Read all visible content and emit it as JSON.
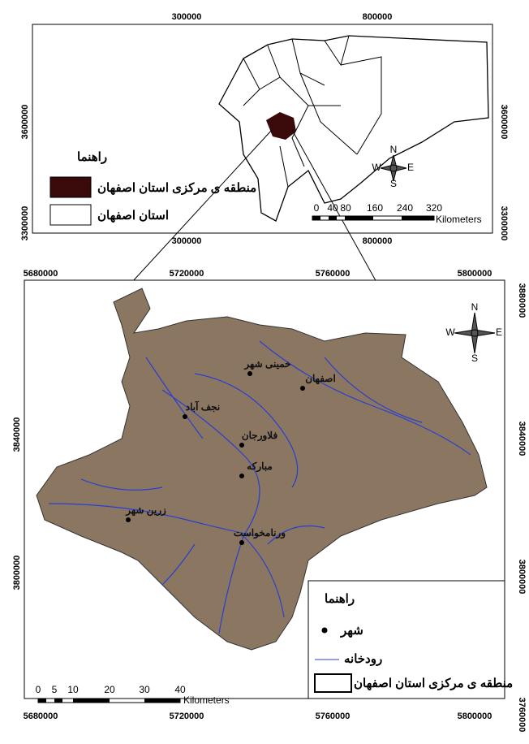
{
  "top_map": {
    "x_ticks_top": [
      300000,
      800000
    ],
    "x_ticks_bottom": [
      300000,
      800000
    ],
    "y_ticks_left": [
      3600000,
      3300000
    ],
    "y_ticks_right": [
      3600000,
      3300000
    ],
    "legend": {
      "title": "راهنما",
      "items": [
        "منطقه ی مرکزی استان اصفهان",
        "استان اصفهان"
      ]
    },
    "scale": {
      "labels": [
        0,
        40,
        80,
        160,
        240,
        320
      ],
      "unit": "Kilometers"
    },
    "compass": {
      "n": "N",
      "s": "S",
      "w": "W",
      "e": "E"
    }
  },
  "bottom_map": {
    "x_ticks_top": [
      5680000,
      5720000,
      5760000,
      5800000
    ],
    "x_ticks_bottom": [
      5680000,
      5720000,
      5760000,
      5800000
    ],
    "y_ticks_left": [
      3840000,
      3800000
    ],
    "y_ticks_right": [
      3880000,
      3840000,
      3800000,
      3760000
    ],
    "cities": [
      "خمینی شهر",
      "اصفهان",
      "نجف آباد",
      "فلاورجان",
      "مبارکه",
      "زرین شهر",
      "ورنامخواست"
    ],
    "legend": {
      "title": "راهنما",
      "items": [
        "شهر",
        "رودخانه",
        "منطقه ی مرکزی استان اصفهان"
      ]
    },
    "scale": {
      "labels": [
        0,
        5,
        10,
        20,
        30,
        40
      ],
      "unit": "Kilometers"
    },
    "compass": {
      "n": "N",
      "s": "S",
      "w": "W",
      "e": "E"
    }
  }
}
